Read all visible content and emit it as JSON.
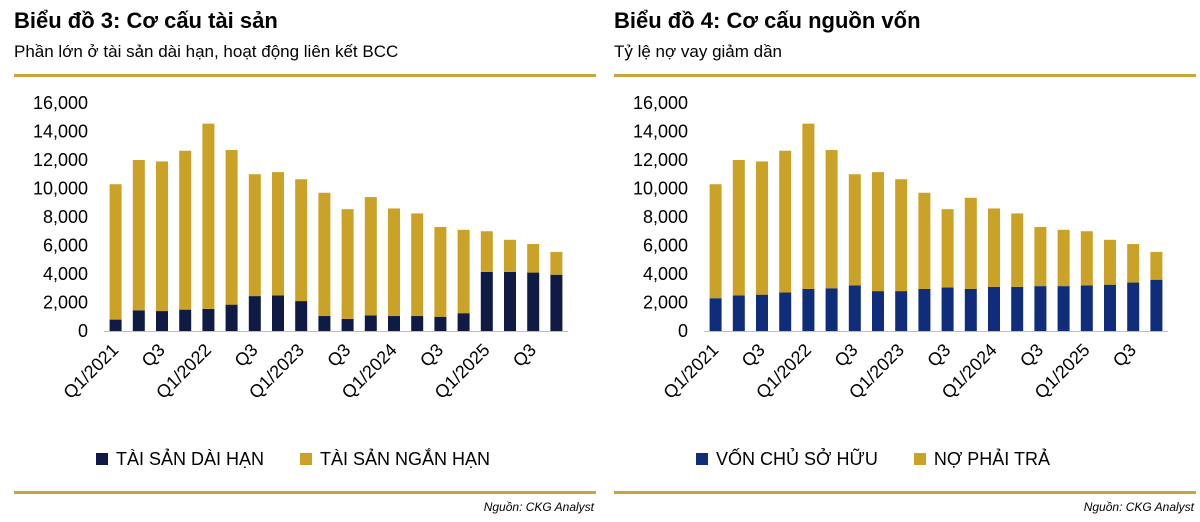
{
  "charts": [
    {
      "title": "Biểu đồ 3: Cơ cấu tài sản",
      "subtitle": "Phần lớn ở tài sản dài hạn, hoạt động liên kết BCC",
      "source": "Nguồn: CKG Analyst"
    },
    {
      "title": "Biểu đồ 4: Cơ cấu nguồn vốn",
      "subtitle": "Tỷ lệ nợ vay giảm dần",
      "source": "Nguồn: CKG Analyst"
    }
  ],
  "colors": {
    "navy": "#0f1b45",
    "gold": "#c9a227",
    "rule": "#c9a43a"
  },
  "chart_data": [
    {
      "type": "bar",
      "stacked": true,
      "title": "Biểu đồ 3: Cơ cấu tài sản",
      "subtitle": "Phần lớn ở tài sản dài hạn, hoạt động liên kết BCC",
      "categories": [
        "Q1/2021",
        "Q2/2021",
        "Q3/2021",
        "Q4/2021",
        "Q1/2022",
        "Q2/2022",
        "Q3/2022",
        "Q4/2022",
        "Q1/2023",
        "Q2/2023",
        "Q3/2023",
        "Q4/2023",
        "Q1/2024",
        "Q2/2024",
        "Q3/2024",
        "Q4/2024",
        "Q1/2025",
        "Q2/2025",
        "Q3/2025",
        "Q4/2025"
      ],
      "x_tick_labels": [
        "Q1/2021",
        "",
        "Q3",
        "",
        "Q1/2022",
        "",
        "Q3",
        "",
        "Q1/2023",
        "",
        "Q3",
        "",
        "Q1/2024",
        "",
        "Q3",
        "",
        "Q1/2025",
        "",
        "Q3",
        ""
      ],
      "series": [
        {
          "name": "TÀI SẢN DÀI HẠN",
          "color": "#0f1b45",
          "values": [
            800,
            1450,
            1400,
            1500,
            1550,
            1850,
            2450,
            2500,
            2100,
            1050,
            850,
            1100,
            1050,
            1050,
            1000,
            1250,
            4150,
            4150,
            4100,
            3950
          ]
        },
        {
          "name": "TÀI SẢN NGẮN HẠN",
          "color": "#c9a227",
          "values": [
            9500,
            10550,
            10500,
            11150,
            13000,
            10850,
            8550,
            8650,
            8550,
            8650,
            7700,
            8300,
            7550,
            7200,
            6300,
            5850,
            2850,
            2250,
            2000,
            1600
          ]
        }
      ],
      "ylim": [
        0,
        16000
      ],
      "y_ticks": [
        "0",
        "2,000",
        "4,000",
        "6,000",
        "8,000",
        "10,000",
        "12,000",
        "14,000",
        "16,000"
      ],
      "legend_position": "bottom",
      "grid": false
    },
    {
      "type": "bar",
      "stacked": true,
      "title": "Biểu đồ 4: Cơ cấu nguồn vốn",
      "subtitle": "Tỷ lệ nợ vay giảm dần",
      "categories": [
        "Q1/2021",
        "Q2/2021",
        "Q3/2021",
        "Q4/2021",
        "Q1/2022",
        "Q2/2022",
        "Q3/2022",
        "Q4/2022",
        "Q1/2023",
        "Q2/2023",
        "Q3/2023",
        "Q4/2023",
        "Q1/2024",
        "Q2/2024",
        "Q3/2024",
        "Q4/2024",
        "Q1/2025",
        "Q2/2025",
        "Q3/2025",
        "Q4/2025"
      ],
      "x_tick_labels": [
        "Q1/2021",
        "",
        "Q3",
        "",
        "Q1/2022",
        "",
        "Q3",
        "",
        "Q1/2023",
        "",
        "Q3",
        "",
        "Q1/2024",
        "",
        "Q3",
        "",
        "Q1/2025",
        "",
        "Q3",
        ""
      ],
      "series": [
        {
          "name": "VỐN CHỦ SỞ HỮU",
          "color": "#0f2d7a",
          "values": [
            2300,
            2500,
            2550,
            2700,
            2950,
            3000,
            3200,
            2800,
            2800,
            2950,
            3050,
            2950,
            3100,
            3100,
            3150,
            3150,
            3200,
            3250,
            3400,
            3600
          ]
        },
        {
          "name": "NỢ PHẢI TRẢ",
          "color": "#c9a227",
          "values": [
            8000,
            9500,
            9350,
            9950,
            11600,
            9700,
            7800,
            8350,
            7850,
            6750,
            5500,
            6400,
            5500,
            5150,
            4150,
            3950,
            3800,
            3150,
            2700,
            1950
          ]
        }
      ],
      "ylim": [
        0,
        16000
      ],
      "y_ticks": [
        "0",
        "2,000",
        "4,000",
        "6,000",
        "8,000",
        "10,000",
        "12,000",
        "14,000",
        "16,000"
      ],
      "legend_position": "bottom",
      "grid": false
    }
  ]
}
